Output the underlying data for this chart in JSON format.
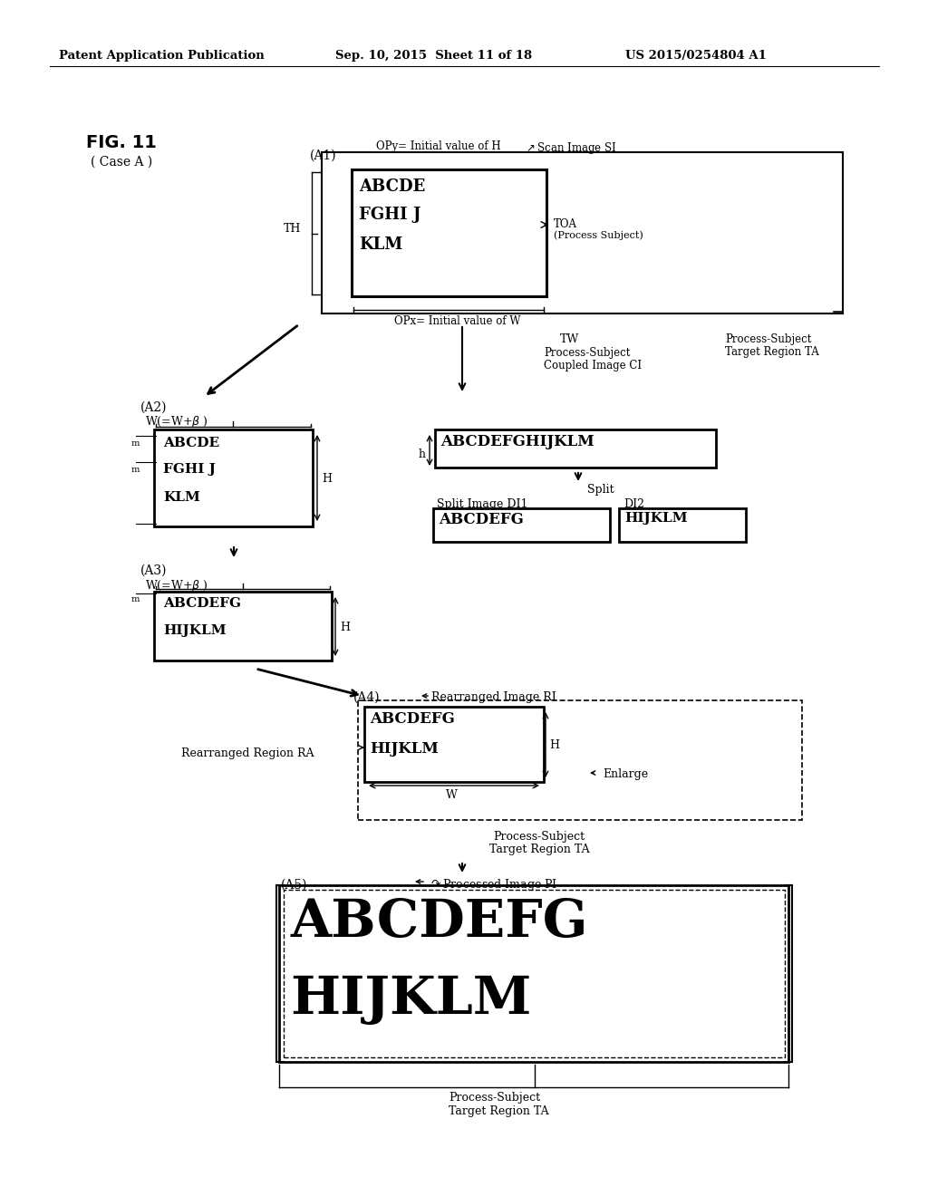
{
  "bg_color": "#ffffff",
  "header_left": "Patent Application Publication",
  "header_mid": "Sep. 10, 2015  Sheet 11 of 18",
  "header_right": "US 2015/0254804 A1"
}
